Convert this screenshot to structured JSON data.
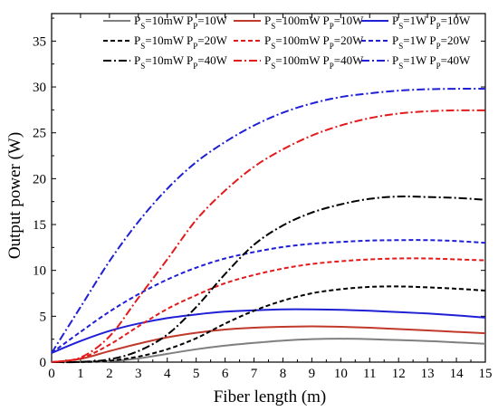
{
  "chart_data": {
    "type": "line",
    "title": "",
    "xlabel": "Fiber length (m)",
    "ylabel": "Output power (W)",
    "xlim": [
      0,
      15
    ],
    "ylim": [
      0,
      38
    ],
    "xticks": [
      0,
      1,
      2,
      3,
      4,
      5,
      6,
      7,
      8,
      9,
      10,
      11,
      12,
      13,
      14,
      15
    ],
    "yticks": [
      0,
      5,
      10,
      15,
      20,
      25,
      30,
      35
    ],
    "grid": false,
    "legend_position": "top-right",
    "legend_columns": 3,
    "series": [
      {
        "name": "PS=10mW PP=10W",
        "legend": {
          "ps": "10mW",
          "pp": "10W"
        },
        "color": "#7f7f7f",
        "style": "solid",
        "x": [
          0,
          1,
          2,
          3,
          4,
          5,
          6,
          7,
          8,
          9,
          10,
          11,
          12,
          13,
          14,
          15
        ],
        "y": [
          0,
          0.01,
          0.1,
          0.4,
          0.9,
          1.4,
          1.8,
          2.1,
          2.35,
          2.5,
          2.55,
          2.5,
          2.4,
          2.3,
          2.15,
          2.0
        ]
      },
      {
        "name": "PS=100mW PP=10W",
        "legend": {
          "ps": "100mW",
          "pp": "10W"
        },
        "color": "#c0392b",
        "style": "solid",
        "x": [
          0,
          1,
          2,
          3,
          4,
          5,
          6,
          7,
          8,
          9,
          10,
          11,
          12,
          13,
          14,
          15
        ],
        "y": [
          0,
          0.35,
          1.2,
          2.0,
          2.7,
          3.2,
          3.55,
          3.75,
          3.85,
          3.9,
          3.85,
          3.75,
          3.6,
          3.45,
          3.3,
          3.15
        ]
      },
      {
        "name": "PS=1W PP=10W",
        "legend": {
          "ps": "1W",
          "pp": "10W"
        },
        "color": "#1f1fd6",
        "style": "solid",
        "x": [
          0,
          1,
          2,
          3,
          4,
          5,
          6,
          7,
          8,
          9,
          10,
          11,
          12,
          13,
          14,
          15
        ],
        "y": [
          1.0,
          2.3,
          3.4,
          4.2,
          4.8,
          5.2,
          5.5,
          5.65,
          5.75,
          5.75,
          5.7,
          5.6,
          5.45,
          5.3,
          5.1,
          4.85
        ]
      },
      {
        "name": "PS=10mW PP=20W",
        "legend": {
          "ps": "10mW",
          "pp": "20W"
        },
        "color": "#000000",
        "style": "dash",
        "x": [
          0,
          1,
          2,
          3,
          4,
          5,
          6,
          7,
          8,
          9,
          10,
          11,
          12,
          13,
          14,
          15
        ],
        "y": [
          0,
          0.02,
          0.15,
          0.6,
          1.4,
          2.6,
          4.2,
          5.6,
          6.7,
          7.5,
          7.95,
          8.2,
          8.25,
          8.15,
          8.0,
          7.8
        ]
      },
      {
        "name": "PS=100mW PP=20W",
        "legend": {
          "ps": "100mW",
          "pp": "20W"
        },
        "color": "#e31a1c",
        "style": "dash",
        "x": [
          0,
          1,
          2,
          3,
          4,
          5,
          6,
          7,
          8,
          9,
          10,
          11,
          12,
          13,
          14,
          15
        ],
        "y": [
          0,
          0.4,
          1.9,
          3.9,
          5.8,
          7.3,
          8.6,
          9.5,
          10.2,
          10.7,
          11.0,
          11.2,
          11.3,
          11.3,
          11.2,
          11.1
        ]
      },
      {
        "name": "PS=1W PP=20W",
        "legend": {
          "ps": "1W",
          "pp": "20W"
        },
        "color": "#1f1fd6",
        "style": "dash",
        "x": [
          0,
          1,
          2,
          3,
          4,
          5,
          6,
          7,
          8,
          9,
          10,
          11,
          12,
          13,
          14,
          15
        ],
        "y": [
          1.0,
          3.3,
          5.5,
          7.4,
          9.0,
          10.3,
          11.3,
          12.0,
          12.55,
          12.9,
          13.1,
          13.25,
          13.3,
          13.3,
          13.2,
          13.0
        ]
      },
      {
        "name": "PS=10mW PP=40W",
        "legend": {
          "ps": "10mW",
          "pp": "40W"
        },
        "color": "#000000",
        "style": "dashdot",
        "x": [
          0,
          1,
          2,
          3,
          4,
          5,
          6,
          7,
          8,
          9,
          10,
          11,
          12,
          13,
          14,
          15
        ],
        "y": [
          0,
          0.02,
          0.3,
          1.2,
          3.0,
          6.0,
          9.6,
          12.8,
          14.9,
          16.3,
          17.2,
          17.8,
          18.05,
          18.0,
          17.9,
          17.7
        ]
      },
      {
        "name": "PS=100mW PP=40W",
        "legend": {
          "ps": "100mW",
          "pp": "40W"
        },
        "color": "#e31a1c",
        "style": "dashdot",
        "x": [
          0,
          1,
          2,
          3,
          4,
          5,
          6,
          7,
          8,
          9,
          10,
          11,
          12,
          13,
          14,
          15
        ],
        "y": [
          0,
          0.5,
          2.8,
          7.0,
          11.2,
          15.5,
          18.7,
          21.3,
          23.2,
          24.7,
          25.8,
          26.6,
          27.1,
          27.35,
          27.45,
          27.45
        ]
      },
      {
        "name": "PS=1W PP=40W",
        "legend": {
          "ps": "1W",
          "pp": "40W"
        },
        "color": "#1f1fd6",
        "style": "dashdot",
        "x": [
          0,
          1,
          2,
          3,
          4,
          5,
          6,
          7,
          8,
          9,
          10,
          11,
          12,
          13,
          14,
          15
        ],
        "y": [
          1.0,
          6.0,
          11.0,
          15.3,
          18.9,
          21.8,
          24.0,
          25.8,
          27.2,
          28.2,
          28.9,
          29.3,
          29.6,
          29.75,
          29.8,
          29.8
        ]
      }
    ]
  }
}
